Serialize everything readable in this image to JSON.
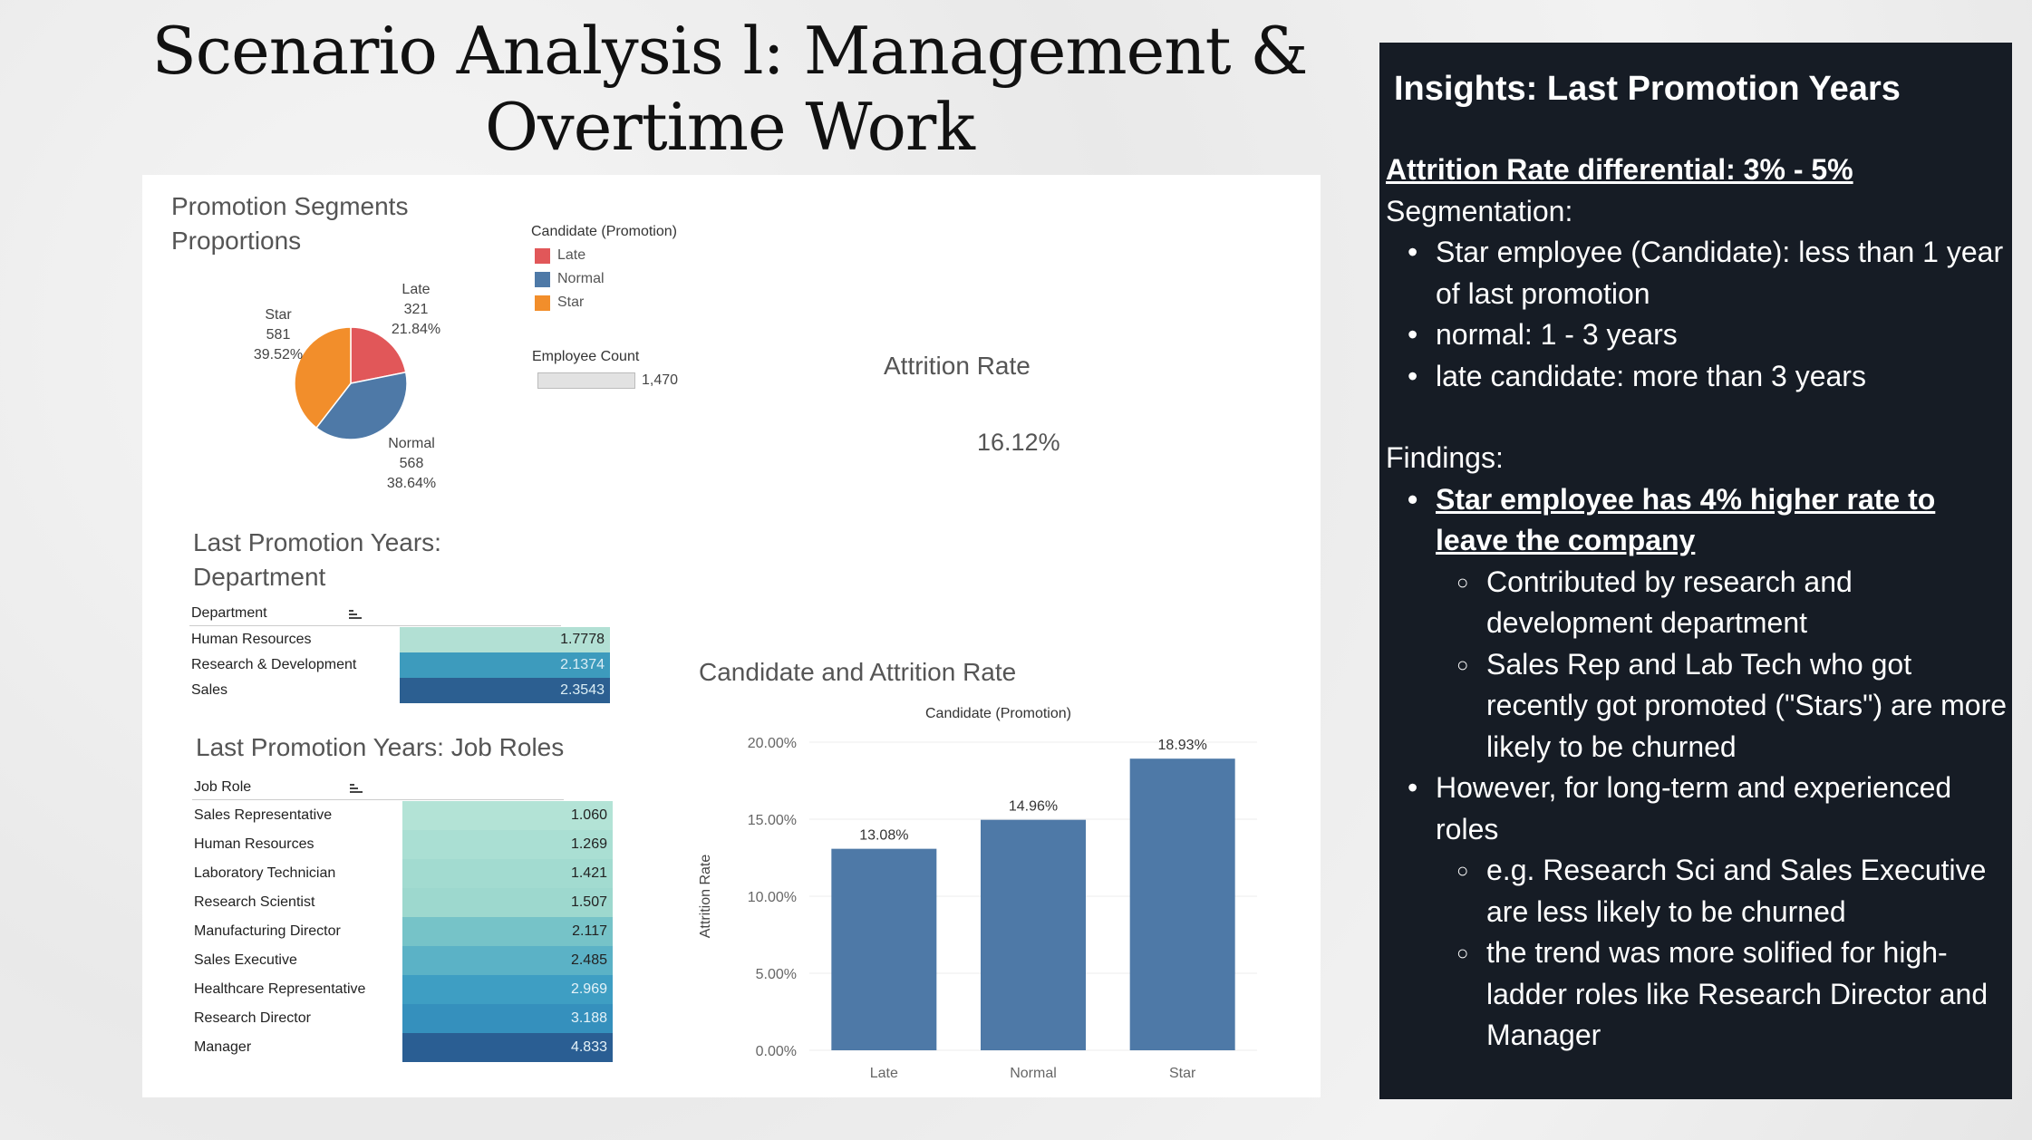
{
  "slide_title": "Scenario Analysis l: Management & Overtime Work",
  "pie": {
    "title_line1": "Promotion Segments",
    "title_line2": "Proportions",
    "slices": [
      {
        "name": "Late",
        "count": "321",
        "pct": "21.84%",
        "value": 21.84,
        "color": "#e15759"
      },
      {
        "name": "Normal",
        "count": "568",
        "pct": "38.64%",
        "value": 38.64,
        "color": "#4e79a7"
      },
      {
        "name": "Star",
        "count": "581",
        "pct": "39.52%",
        "value": 39.52,
        "color": "#f28e2b"
      }
    ]
  },
  "legend": {
    "title": "Candidate (Promotion)",
    "items": [
      {
        "label": "Late",
        "color": "#e15759"
      },
      {
        "label": "Normal",
        "color": "#4e79a7"
      },
      {
        "label": "Star",
        "color": "#f28e2b"
      }
    ],
    "size_title": "Employee Count",
    "size_value": "1,470"
  },
  "attrition": {
    "title": "Attrition Rate",
    "value": "16.12%"
  },
  "dept_table": {
    "title_line1": "Last Promotion Years:",
    "title_line2": "Department",
    "header": "Department",
    "rows": [
      {
        "name": "Human Resources",
        "value": "1.7778",
        "color": "#b2e0d4",
        "text": "#222"
      },
      {
        "name": "Research & Development",
        "value": "2.1374",
        "color": "#3d9bbd",
        "text": "#dbeef5"
      },
      {
        "name": "Sales",
        "value": "2.3543",
        "color": "#2c5f91",
        "text": "#dbeef5"
      }
    ]
  },
  "role_table": {
    "title": "Last Promotion Years: Job Roles",
    "header": "Job Role",
    "rows": [
      {
        "name": "Sales Representative",
        "value": "1.060",
        "color": "#b3e3d6",
        "text": "#222"
      },
      {
        "name": "Human Resources",
        "value": "1.269",
        "color": "#aadfd3",
        "text": "#222"
      },
      {
        "name": "Laboratory Technician",
        "value": "1.421",
        "color": "#a2dbd0",
        "text": "#222"
      },
      {
        "name": "Research Scientist",
        "value": "1.507",
        "color": "#9dd8ce",
        "text": "#222"
      },
      {
        "name": "Manufacturing Director",
        "value": "2.117",
        "color": "#76c3c8",
        "text": "#222"
      },
      {
        "name": "Sales Executive",
        "value": "2.485",
        "color": "#5bb2c6",
        "text": "#222"
      },
      {
        "name": "Healthcare Representative",
        "value": "2.969",
        "color": "#3e9ec3",
        "text": "#e6f3f8"
      },
      {
        "name": "Research Director",
        "value": "3.188",
        "color": "#3590bd",
        "text": "#e6f3f8"
      },
      {
        "name": "Manager",
        "value": "4.833",
        "color": "#2a5e93",
        "text": "#e6f3f8"
      }
    ]
  },
  "chart_data": {
    "type": "bar",
    "title": "Candidate and Attrition Rate",
    "legend_title": "Candidate (Promotion)",
    "categories": [
      "Late",
      "Normal",
      "Star"
    ],
    "values": [
      13.08,
      14.96,
      18.93
    ],
    "value_labels": [
      "13.08%",
      "14.96%",
      "18.93%"
    ],
    "ylabel": "Attrition Rate",
    "xlabel": "",
    "ylim": [
      0,
      20
    ],
    "yticks": [
      "0.00%",
      "5.00%",
      "10.00%",
      "15.00%",
      "20.00%"
    ],
    "grid": true,
    "bar_color": "#4e79a7"
  },
  "insights": {
    "title": "Insights: Last Promotion Years",
    "differential": "Attrition Rate differential: 3% - 5%",
    "segmentation_heading": "Segmentation:",
    "segmentation": [
      "Star employee (Candidate): less than 1 year of last promotion",
      "normal: 1 - 3 years",
      "late candidate: more than 3 years"
    ],
    "findings_heading": "Findings:",
    "finding1": "Star employee has 4% higher rate to leave the company",
    "finding1_sub": [
      "Contributed by research and development department",
      "Sales Rep and Lab Tech who got recently got promoted (\"Stars\") are more likely to be churned"
    ],
    "finding2": "However, for long-term and experienced roles",
    "finding2_sub": [
      "e.g. Research Sci and Sales Executive are less likely to be churned",
      "the trend was more solified for high-ladder roles like Research Director and Manager"
    ]
  }
}
